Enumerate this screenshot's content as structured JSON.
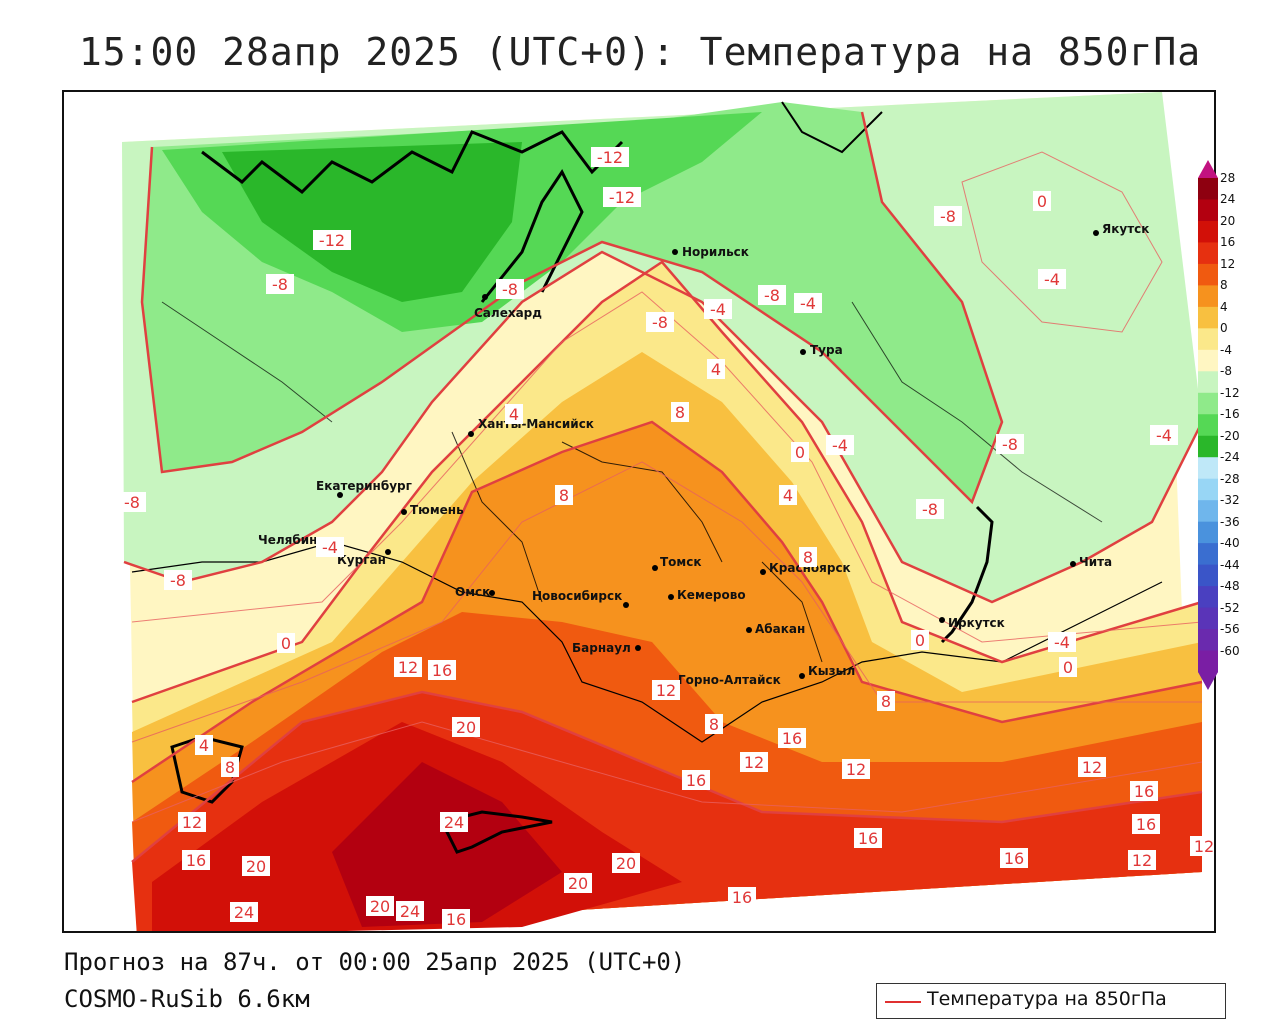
{
  "title": "15:00 28апр 2025 (UTC+0): Температура на 850гПа",
  "footer": {
    "forecast_line": "Прогноз на 87ч. от 00:00 25апр 2025 (UTC+0)",
    "model_line": "COSMO-RuSib 6.6км"
  },
  "legend": {
    "label": "Температура на 850гПа",
    "line_color": "#e03030"
  },
  "colorbar": {
    "ticks": [
      "28",
      "24",
      "20",
      "16",
      "12",
      "8",
      "4",
      "0",
      "-4",
      "-8",
      "-12",
      "-16",
      "-20",
      "-24",
      "-28",
      "-32",
      "-36",
      "-40",
      "-44",
      "-48",
      "-52",
      "-56",
      "-60"
    ],
    "colors": [
      "#8e0010",
      "#b30010",
      "#d21008",
      "#e63010",
      "#f05a10",
      "#f6921e",
      "#f8c040",
      "#fbe88a",
      "#fff6c2",
      "#c8f5c0",
      "#8fea8a",
      "#55d855",
      "#2ab72a",
      "#bfe8f8",
      "#98d6f5",
      "#6fb6ec",
      "#4a92dd",
      "#3a6ed0",
      "#3a55c8",
      "#4a40c0",
      "#5a34b8",
      "#6a2aae",
      "#7a1ea4"
    ],
    "top_cap_color": "#c21280",
    "bottom_cap_color": "#7a1ea4"
  },
  "cities": [
    {
      "name": "Норильск"
    },
    {
      "name": "Якутск"
    },
    {
      "name": "Салехард"
    },
    {
      "name": "Тура"
    },
    {
      "name": "Ханты-Мансийск"
    },
    {
      "name": "Екатеринбург"
    },
    {
      "name": "Тюмень"
    },
    {
      "name": "Челябинск"
    },
    {
      "name": "Курган"
    },
    {
      "name": "Омск"
    },
    {
      "name": "Томск"
    },
    {
      "name": "Новосибирск"
    },
    {
      "name": "Кемерово"
    },
    {
      "name": "Красноярск"
    },
    {
      "name": "Барнаул"
    },
    {
      "name": "Абакан"
    },
    {
      "name": "Горно-Алтайск"
    },
    {
      "name": "Кызыл"
    },
    {
      "name": "Иркутск"
    },
    {
      "name": "Чита"
    }
  ],
  "isotherm_labels": [
    "-12",
    "-12",
    "-8",
    "-12",
    "-8",
    "-8",
    "-4",
    "-4",
    "-8",
    "-8",
    "0",
    "-4",
    "8",
    "4",
    "4",
    "-4",
    "0",
    "-8",
    "-4",
    "-8",
    "-8",
    "8",
    "4",
    "8",
    "-8",
    "-4",
    "0",
    "0",
    "-4",
    "0",
    "8",
    "8",
    "12",
    "16",
    "12",
    "20",
    "4",
    "8",
    "12",
    "12",
    "16",
    "16",
    "20",
    "24",
    "16",
    "16",
    "12",
    "20",
    "16",
    "12",
    "16",
    "16",
    "12",
    "24",
    "20",
    "24",
    "16",
    "20",
    "16",
    "12"
  ]
}
